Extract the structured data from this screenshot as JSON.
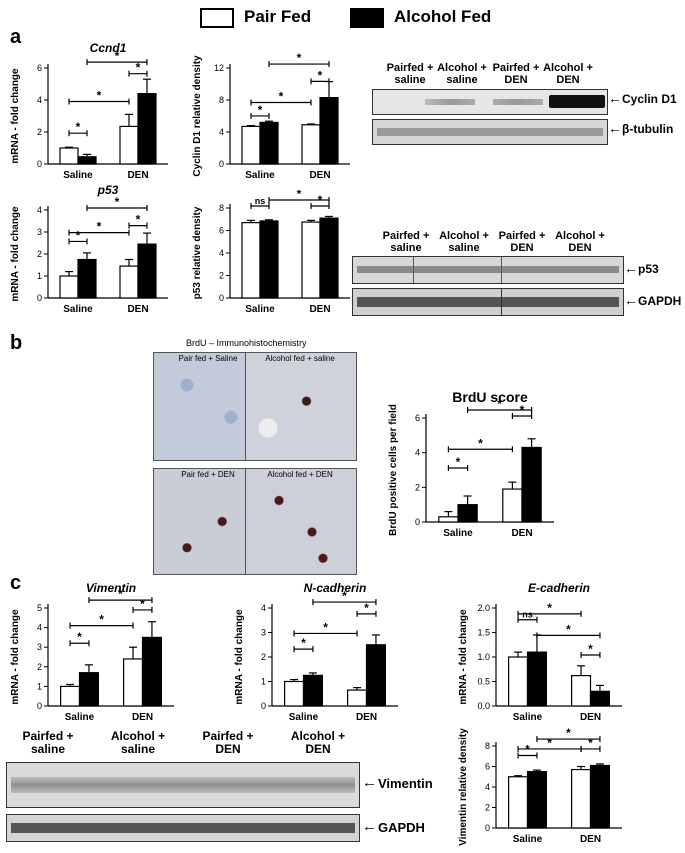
{
  "legend": {
    "pair_fed": "Pair Fed",
    "alcohol_fed": "Alcohol Fed"
  },
  "panels": {
    "a": "a",
    "b": "b",
    "c": "c"
  },
  "colors": {
    "pair_fed": "#ffffff",
    "alcohol_fed": "#000000",
    "stroke": "#000000"
  },
  "chart_data": [
    {
      "id": "ccnd1",
      "type": "bar",
      "title": "Ccnd1",
      "ylabel": "mRNA - fold change",
      "categories": [
        "Saline",
        "DEN"
      ],
      "ylim": [
        0,
        6
      ],
      "yticks": [
        0,
        2,
        4,
        6
      ],
      "series": [
        {
          "name": "Pair Fed",
          "values": [
            1.0,
            2.35
          ],
          "errors": [
            0.05,
            0.75
          ]
        },
        {
          "name": "Alcohol Fed",
          "values": [
            0.45,
            4.4
          ],
          "errors": [
            0.15,
            0.9
          ]
        }
      ],
      "significance": [
        {
          "label": "*"
        },
        {
          "label": "*"
        },
        {
          "label": "*"
        },
        {
          "label": "*"
        }
      ]
    },
    {
      "id": "cyclind1_density",
      "type": "bar",
      "title": "",
      "ylabel": "Cyclin D1 relative density",
      "categories": [
        "Saline",
        "DEN"
      ],
      "ylim": [
        0,
        12
      ],
      "yticks": [
        0,
        4,
        8,
        12
      ],
      "series": [
        {
          "name": "Pair Fed",
          "values": [
            4.7,
            4.9
          ],
          "errors": [
            0.1,
            0.1
          ]
        },
        {
          "name": "Alcohol Fed",
          "values": [
            5.2,
            8.3
          ],
          "errors": [
            0.15,
            2.0
          ]
        }
      ],
      "significance": [
        {
          "label": "*"
        },
        {
          "label": "*"
        },
        {
          "label": "*"
        },
        {
          "label": "*"
        }
      ]
    },
    {
      "id": "p53",
      "type": "bar",
      "title": "p53",
      "ylabel": "mRNA - fold change",
      "categories": [
        "Saline",
        "DEN"
      ],
      "ylim": [
        0,
        4
      ],
      "yticks": [
        0,
        1,
        2,
        3,
        4
      ],
      "series": [
        {
          "name": "Pair Fed",
          "values": [
            1.0,
            1.45
          ],
          "errors": [
            0.2,
            0.3
          ]
        },
        {
          "name": "Alcohol Fed",
          "values": [
            1.75,
            2.45
          ],
          "errors": [
            0.3,
            0.5
          ]
        }
      ],
      "significance": [
        {
          "label": "*"
        },
        {
          "label": "*"
        },
        {
          "label": "*"
        },
        {
          "label": "*"
        }
      ]
    },
    {
      "id": "p53_density",
      "type": "bar",
      "title": "",
      "ylabel": "p53 relative density",
      "categories": [
        "Saline",
        "DEN"
      ],
      "ylim": [
        0,
        8
      ],
      "yticks": [
        0,
        2,
        4,
        6,
        8
      ],
      "series": [
        {
          "name": "Pair Fed",
          "values": [
            6.7,
            6.75
          ],
          "errors": [
            0.2,
            0.15
          ]
        },
        {
          "name": "Alcohol Fed",
          "values": [
            6.85,
            7.1
          ],
          "errors": [
            0.1,
            0.15
          ]
        }
      ],
      "significance": [
        {
          "label": "ns"
        },
        {
          "label": "*"
        },
        {
          "label": "*"
        }
      ]
    },
    {
      "id": "brdu",
      "type": "bar",
      "title": "BrdU score",
      "ylabel": "BrdU positive cells per field",
      "categories": [
        "Saline",
        "DEN"
      ],
      "ylim": [
        0,
        6
      ],
      "yticks": [
        0,
        2,
        4,
        6
      ],
      "series": [
        {
          "name": "Pair Fed",
          "values": [
            0.3,
            1.9
          ],
          "errors": [
            0.3,
            0.4
          ]
        },
        {
          "name": "Alcohol Fed",
          "values": [
            1.0,
            4.3
          ],
          "errors": [
            0.5,
            0.5
          ]
        }
      ],
      "significance": [
        {
          "label": "*"
        },
        {
          "label": "*"
        },
        {
          "label": "*"
        },
        {
          "label": "*"
        }
      ]
    },
    {
      "id": "vimentin",
      "type": "bar",
      "title": "Vimentin",
      "ylabel": "mRNA - fold change",
      "categories": [
        "Saline",
        "DEN"
      ],
      "ylim": [
        0,
        5
      ],
      "yticks": [
        0,
        1,
        2,
        3,
        4,
        5
      ],
      "series": [
        {
          "name": "Pair Fed",
          "values": [
            1.0,
            2.4
          ],
          "errors": [
            0.1,
            0.6
          ]
        },
        {
          "name": "Alcohol Fed",
          "values": [
            1.7,
            3.5
          ],
          "errors": [
            0.4,
            0.8
          ]
        }
      ],
      "significance": [
        {
          "label": "*"
        },
        {
          "label": "*"
        },
        {
          "label": "*"
        },
        {
          "label": "*"
        }
      ]
    },
    {
      "id": "ncadherin",
      "type": "bar",
      "title": "N-cadherin",
      "ylabel": "mRNA - fold change",
      "categories": [
        "Saline",
        "DEN"
      ],
      "ylim": [
        0,
        4
      ],
      "yticks": [
        0,
        1,
        2,
        3,
        4
      ],
      "series": [
        {
          "name": "Pair Fed",
          "values": [
            1.0,
            0.65
          ],
          "errors": [
            0.08,
            0.1
          ]
        },
        {
          "name": "Alcohol Fed",
          "values": [
            1.25,
            2.5
          ],
          "errors": [
            0.1,
            0.4
          ]
        }
      ],
      "significance": [
        {
          "label": "*"
        },
        {
          "label": "*"
        },
        {
          "label": "*"
        },
        {
          "label": "*"
        }
      ]
    },
    {
      "id": "ecadherin",
      "type": "bar",
      "title": "E-cadherin",
      "ylabel": "mRNA - fold change",
      "categories": [
        "Saline",
        "DEN"
      ],
      "ylim": [
        0,
        2.0
      ],
      "yticks": [
        0.0,
        0.5,
        1.0,
        1.5,
        2.0
      ],
      "tickfmt": 1,
      "series": [
        {
          "name": "Pair Fed",
          "values": [
            1.0,
            0.62
          ],
          "errors": [
            0.1,
            0.2
          ]
        },
        {
          "name": "Alcohol Fed",
          "values": [
            1.1,
            0.3
          ],
          "errors": [
            0.35,
            0.12
          ]
        }
      ],
      "significance": [
        {
          "label": "ns"
        },
        {
          "label": "*"
        },
        {
          "label": "*"
        },
        {
          "label": "*"
        }
      ]
    },
    {
      "id": "vimentin_density",
      "type": "bar",
      "title": "",
      "ylabel": "Vimentin relative density",
      "categories": [
        "Saline",
        "DEN"
      ],
      "ylim": [
        0,
        8
      ],
      "yticks": [
        0,
        2,
        4,
        6,
        8
      ],
      "series": [
        {
          "name": "Pair Fed",
          "values": [
            5.0,
            5.7
          ],
          "errors": [
            0.1,
            0.3
          ]
        },
        {
          "name": "Alcohol Fed",
          "values": [
            5.5,
            6.1
          ],
          "errors": [
            0.15,
            0.15
          ]
        }
      ],
      "significance": [
        {
          "label": "*"
        },
        {
          "label": "*"
        },
        {
          "label": "*"
        },
        {
          "label": "*"
        }
      ]
    }
  ],
  "blots": {
    "cyclin": {
      "lanes": [
        "Pairfed + saline",
        "Alcohol + saline",
        "Pairfed + DEN",
        "Alcohol + DEN"
      ],
      "bands": [
        "Cyclin D1",
        "β-tubulin"
      ]
    },
    "p53": {
      "lanes": [
        "Pairfed + saline",
        "Alcohol + saline",
        "Pairfed + DEN",
        "Alcohol + DEN"
      ],
      "bands": [
        "p53",
        "GAPDH"
      ]
    },
    "vimentin": {
      "lanes": [
        "Pairfed + saline",
        "Alcohol + saline",
        "Pairfed + DEN",
        "Alcohol + DEN"
      ],
      "bands": [
        "Vimentin",
        "GAPDH"
      ]
    }
  },
  "brdu_ihc": {
    "title": "BrdU – Immunohistochemistry",
    "images": [
      "Pair fed + Saline",
      "Alcohol fed + saline",
      "Pair fed + DEN",
      "Alcohol fed + DEN"
    ]
  }
}
